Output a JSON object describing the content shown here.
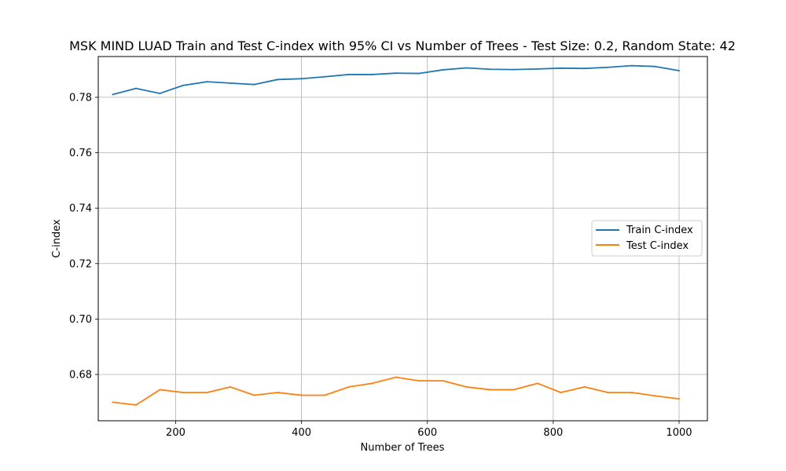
{
  "chart_data": {
    "type": "line",
    "title": "MSK MIND LUAD Train and Test C-index with 95% CI vs Number of Trees - Test Size: 0.2, Random State: 42",
    "xlabel": "Number of Trees",
    "ylabel": "C-index",
    "xlim": [
      77,
      1045
    ],
    "ylim": [
      0.6633,
      0.7947
    ],
    "xticks": [
      200,
      400,
      600,
      800,
      1000
    ],
    "yticks": [
      0.68,
      0.7,
      0.72,
      0.74,
      0.76,
      0.78
    ],
    "ytick_labels": [
      "0.68",
      "0.70",
      "0.72",
      "0.74",
      "0.76",
      "0.78"
    ],
    "grid": true,
    "legend_position": "center-right",
    "x": [
      100,
      137,
      175,
      212,
      250,
      287,
      325,
      362,
      400,
      437,
      475,
      512,
      550,
      587,
      625,
      662,
      700,
      737,
      775,
      812,
      850,
      887,
      925,
      962,
      1000
    ],
    "series": [
      {
        "name": "Train C-index",
        "color": "#1f77b4",
        "values": [
          0.781,
          0.7832,
          0.7814,
          0.7843,
          0.7856,
          0.7851,
          0.7846,
          0.7864,
          0.7867,
          0.7874,
          0.7882,
          0.7882,
          0.7887,
          0.7886,
          0.7899,
          0.7906,
          0.7901,
          0.79,
          0.7902,
          0.7905,
          0.7904,
          0.7908,
          0.7914,
          0.7911,
          0.7896
        ]
      },
      {
        "name": "Test C-index",
        "color": "#ff7f0e",
        "values": [
          0.67,
          0.669,
          0.6745,
          0.6735,
          0.6735,
          0.6755,
          0.6725,
          0.6735,
          0.6725,
          0.6725,
          0.6755,
          0.6768,
          0.679,
          0.6777,
          0.6777,
          0.6755,
          0.6745,
          0.6745,
          0.6768,
          0.6735,
          0.6755,
          0.6735,
          0.6735,
          0.6723,
          0.6712
        ]
      }
    ]
  }
}
